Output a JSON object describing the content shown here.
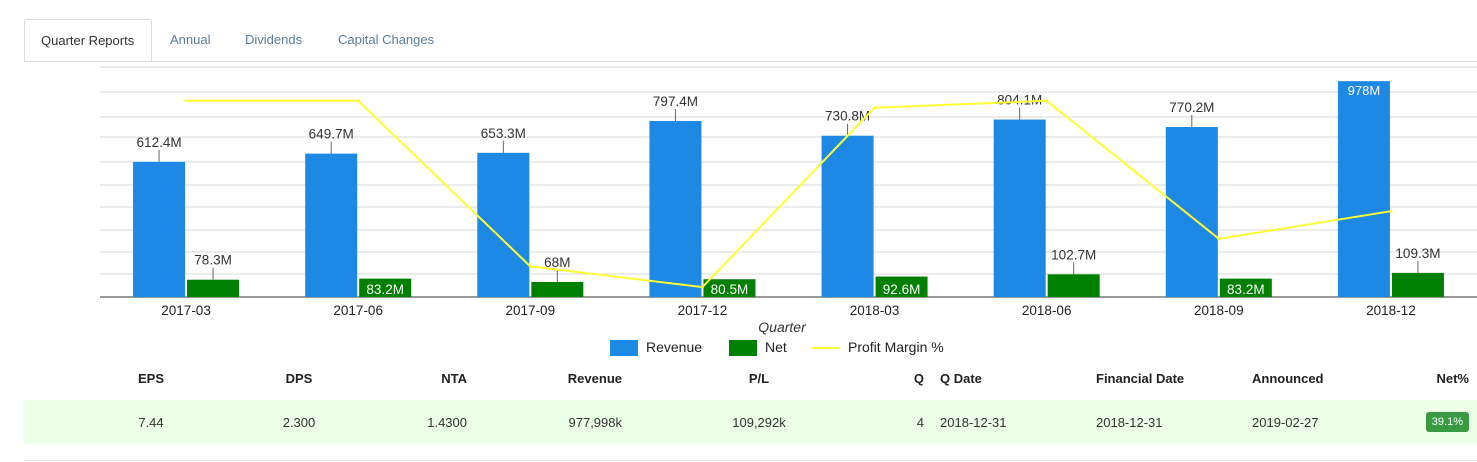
{
  "tabs": [
    {
      "label": "Quarter Reports",
      "active": true
    },
    {
      "label": "Annual",
      "active": false
    },
    {
      "label": "Dividends",
      "active": false
    },
    {
      "label": "Capital Changes",
      "active": false
    }
  ],
  "colors": {
    "revenue": "#1e88e5",
    "net": "#008000",
    "margin": "#ffff33",
    "badge": "#3a9a43",
    "row_bg": "#eaffe6"
  },
  "chart_data": {
    "type": "bar",
    "xlabel": "Quarter",
    "categories": [
      "2017-03",
      "2017-06",
      "2017-09",
      "2017-12",
      "2018-03",
      "2018-06",
      "2018-09",
      "2018-12"
    ],
    "series": [
      {
        "name": "Revenue",
        "values": [
          612.4,
          649.7,
          653.3,
          797.4,
          730.8,
          804.1,
          770.2,
          978
        ],
        "labels": [
          "612.4M",
          "649.7M",
          "653.3M",
          "797.4M",
          "730.8M",
          "804.1M",
          "770.2M",
          "978M"
        ],
        "unit": "M"
      },
      {
        "name": "Net",
        "values": [
          78.3,
          83.2,
          68,
          80.5,
          92.6,
          102.7,
          83.2,
          109.3
        ],
        "labels": [
          "78.3M",
          "83.2M",
          "68M",
          "80.5M",
          "92.6M",
          "102.7M",
          "83.2M",
          "109.3M"
        ],
        "unit": "M"
      },
      {
        "name": "Profit Margin %",
        "type": "line",
        "values": [
          12.8,
          12.8,
          10.4,
          10.1,
          12.7,
          12.8,
          10.8,
          11.2
        ]
      }
    ],
    "ylim": [
      0,
      1000
    ],
    "margin_ylim": [
      10,
      13
    ],
    "grid": true,
    "legend_position": "bottom-center"
  },
  "legend": {
    "revenue": "Revenue",
    "net": "Net",
    "margin": "Profit Margin %"
  },
  "table": {
    "headers": {
      "eps": "EPS",
      "dps": "DPS",
      "nta": "NTA",
      "revenue": "Revenue",
      "pl": "P/L",
      "q": "Q",
      "qdate": "Q Date",
      "fdate": "Financial Date",
      "announced": "Announced",
      "net": "Net%"
    },
    "row": {
      "eps": "7.44",
      "dps": "2.300",
      "nta": "1.4300",
      "revenue": "977,998k",
      "pl": "109,292k",
      "q": "4",
      "qdate": "2018-12-31",
      "fdate": "2018-12-31",
      "announced": "2019-02-27",
      "net": "39.1%"
    }
  }
}
